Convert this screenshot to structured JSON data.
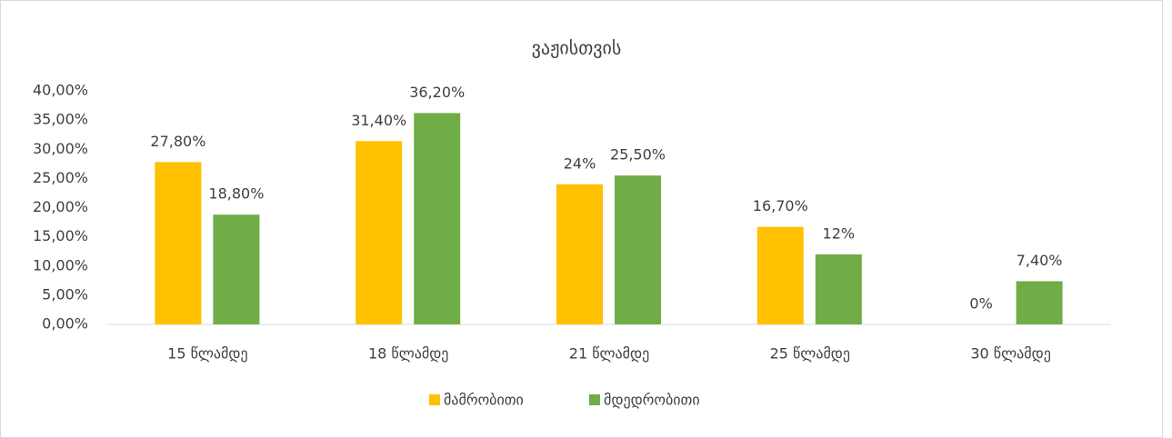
{
  "chart_data": {
    "type": "bar",
    "title": "ვაჟისთვის",
    "categories": [
      "15 წლამდე",
      "18 წლამდე",
      "21 წლამდე",
      "25 წლამდე",
      "30 წლამდე"
    ],
    "series": [
      {
        "name": "მამრობითი",
        "color": "#FFC000",
        "values": [
          27.8,
          31.4,
          24,
          16.7,
          0
        ],
        "value_labels": [
          "27,80%",
          "31,40%",
          "24%",
          "16,70%",
          "0%"
        ]
      },
      {
        "name": "მდედრობითი",
        "color": "#70AD47",
        "values": [
          18.8,
          36.2,
          25.5,
          12,
          7.4
        ],
        "value_labels": [
          "18,80%",
          "36,20%",
          "25,50%",
          "12%",
          "7,40%"
        ]
      }
    ],
    "ylim": [
      0,
      40
    ],
    "yticks": [
      {
        "value": 0,
        "label": "0,00%"
      },
      {
        "value": 5,
        "label": "5,00%"
      },
      {
        "value": 10,
        "label": "10,00%"
      },
      {
        "value": 15,
        "label": "15,00%"
      },
      {
        "value": 20,
        "label": "20,00%"
      },
      {
        "value": 25,
        "label": "25,00%"
      },
      {
        "value": 30,
        "label": "30,00%"
      },
      {
        "value": 35,
        "label": "35,00%"
      },
      {
        "value": 40,
        "label": "40,00%"
      }
    ],
    "grid": false,
    "legend": "bottom"
  }
}
